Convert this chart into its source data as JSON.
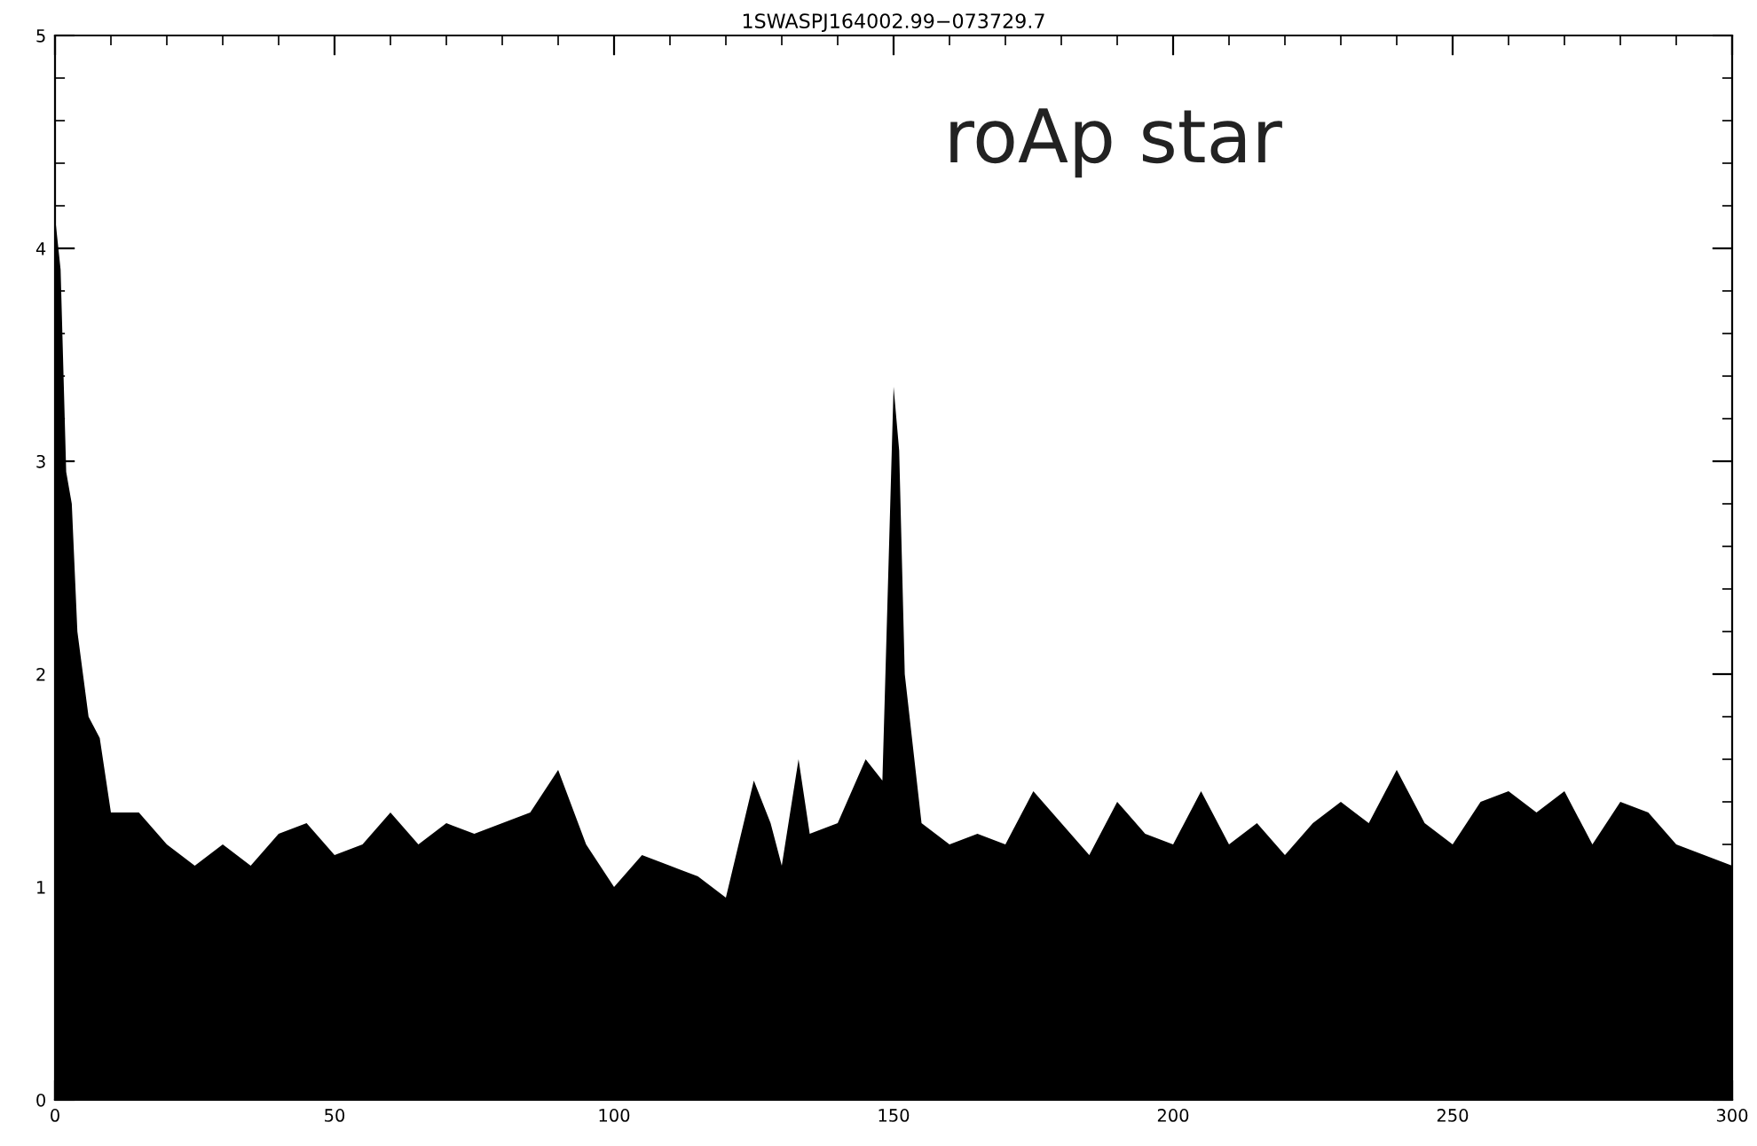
{
  "chart_data": {
    "type": "area",
    "title": "1SWASPJ164002.99−073729.7",
    "annotations": [
      {
        "text": "roAp star"
      }
    ],
    "x": [
      0,
      1,
      2,
      3,
      4,
      6,
      8,
      10,
      15,
      20,
      25,
      30,
      35,
      40,
      45,
      50,
      55,
      60,
      65,
      70,
      75,
      80,
      85,
      90,
      95,
      100,
      105,
      110,
      115,
      120,
      125,
      128,
      130,
      133,
      135,
      140,
      145,
      148,
      150,
      151,
      152,
      155,
      160,
      165,
      170,
      175,
      180,
      185,
      190,
      195,
      200,
      205,
      210,
      215,
      220,
      225,
      230,
      235,
      240,
      245,
      250,
      255,
      260,
      265,
      270,
      275,
      280,
      285,
      290,
      295,
      300
    ],
    "series": [
      {
        "color": "#000000",
        "values": [
          4.15,
          3.9,
          2.95,
          2.8,
          2.2,
          1.8,
          1.7,
          1.35,
          1.35,
          1.2,
          1.1,
          1.2,
          1.1,
          1.25,
          1.3,
          1.15,
          1.2,
          1.35,
          1.2,
          1.3,
          1.25,
          1.3,
          1.35,
          1.55,
          1.2,
          1.0,
          1.15,
          1.1,
          1.05,
          0.95,
          1.5,
          1.3,
          1.1,
          1.6,
          1.25,
          1.3,
          1.6,
          1.5,
          3.35,
          3.05,
          2.0,
          1.3,
          1.2,
          1.25,
          1.2,
          1.45,
          1.3,
          1.15,
          1.4,
          1.25,
          1.2,
          1.45,
          1.2,
          1.3,
          1.15,
          1.3,
          1.4,
          1.3,
          1.55,
          1.3,
          1.2,
          1.4,
          1.45,
          1.35,
          1.45,
          1.2,
          1.4,
          1.35,
          1.2,
          1.15,
          1.1
        ]
      }
    ],
    "xlim": [
      0,
      300
    ],
    "xticks": [
      0,
      50,
      100,
      150,
      200,
      250,
      300
    ],
    "ylim": [
      0,
      5
    ],
    "yticks": [
      0,
      1,
      2,
      3,
      4,
      5
    ]
  }
}
